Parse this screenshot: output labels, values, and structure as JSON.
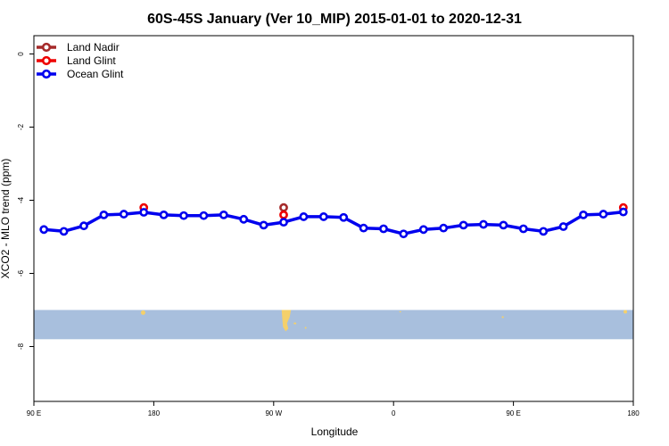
{
  "chart_data": {
    "type": "line",
    "title": "60S-45S January (Ver 10_MIP)   2015-01-01 to 2020-12-31",
    "xlabel": "Longitude",
    "ylabel": "XCO2 - MLO trend (ppm)",
    "xlim": [
      90,
      540
    ],
    "ylim": [
      -9.5,
      0.5
    ],
    "x_ticks": [
      {
        "value": 90,
        "label": "90 E"
      },
      {
        "value": 180,
        "label": "180"
      },
      {
        "value": 270,
        "label": "90 W"
      },
      {
        "value": 360,
        "label": "0"
      },
      {
        "value": 450,
        "label": "90 E"
      },
      {
        "value": 540,
        "label": "180"
      }
    ],
    "y_ticks": [
      {
        "value": 0,
        "label": "0"
      },
      {
        "value": -2,
        "label": "-2"
      },
      {
        "value": -4,
        "label": "-4"
      },
      {
        "value": -6,
        "label": "-6"
      },
      {
        "value": -8,
        "label": "-8"
      }
    ],
    "grid": false,
    "legend_position": "top-left",
    "map_strip": {
      "y_range": [
        -7.8,
        -7.0
      ],
      "ocean_color": "#a8bfdd",
      "land_color": "#f4d06b"
    },
    "series": [
      {
        "name": "Land Nadir",
        "color": "#a52a2a",
        "points": [
          [
            277.5,
            -4.2
          ]
        ]
      },
      {
        "name": "Land Glint",
        "color": "#ee0000",
        "points": [
          [
            172.5,
            -4.2
          ],
          [
            277.5,
            -4.4
          ],
          [
            532.5,
            -4.2
          ]
        ]
      },
      {
        "name": "Ocean Glint",
        "color": "#0000ee",
        "points": [
          [
            97.5,
            -4.8
          ],
          [
            112.5,
            -4.85
          ],
          [
            127.5,
            -4.7
          ],
          [
            142.5,
            -4.4
          ],
          [
            157.5,
            -4.38
          ],
          [
            172.5,
            -4.33
          ],
          [
            187.5,
            -4.4
          ],
          [
            202.5,
            -4.42
          ],
          [
            217.5,
            -4.42
          ],
          [
            232.5,
            -4.4
          ],
          [
            247.5,
            -4.52
          ],
          [
            262.5,
            -4.68
          ],
          [
            277.5,
            -4.6
          ],
          [
            292.5,
            -4.45
          ],
          [
            307.5,
            -4.45
          ],
          [
            322.5,
            -4.47
          ],
          [
            337.5,
            -4.76
          ],
          [
            352.5,
            -4.78
          ],
          [
            367.5,
            -4.92
          ],
          [
            382.5,
            -4.8
          ],
          [
            397.5,
            -4.76
          ],
          [
            412.5,
            -4.68
          ],
          [
            427.5,
            -4.66
          ],
          [
            442.5,
            -4.68
          ],
          [
            457.5,
            -4.78
          ],
          [
            472.5,
            -4.85
          ],
          [
            487.5,
            -4.72
          ],
          [
            502.5,
            -4.4
          ],
          [
            517.5,
            -4.38
          ],
          [
            532.5,
            -4.32
          ]
        ]
      }
    ]
  }
}
